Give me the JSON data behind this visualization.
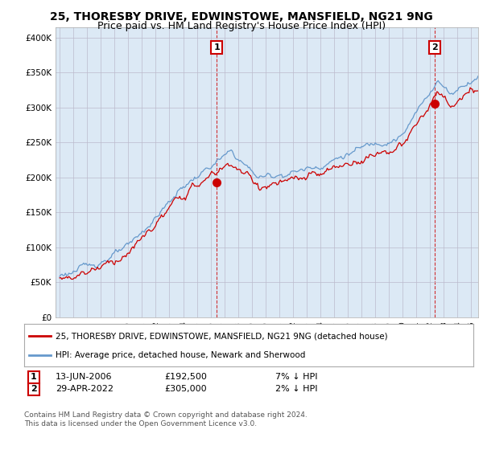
{
  "title": "25, THORESBY DRIVE, EDWINSTOWE, MANSFIELD, NG21 9NG",
  "subtitle": "Price paid vs. HM Land Registry's House Price Index (HPI)",
  "ylabel_ticks": [
    "£0",
    "£50K",
    "£100K",
    "£150K",
    "£200K",
    "£250K",
    "£300K",
    "£350K",
    "£400K"
  ],
  "ytick_values": [
    0,
    50000,
    100000,
    150000,
    200000,
    250000,
    300000,
    350000,
    400000
  ],
  "ylim": [
    0,
    415000
  ],
  "xlim_start": 1994.7,
  "xlim_end": 2025.5,
  "sale1": {
    "date_x": 2006.45,
    "price": 192500,
    "label": "1",
    "date_str": "13-JUN-2006",
    "price_str": "£192,500",
    "hpi_str": "7% ↓ HPI"
  },
  "sale2": {
    "date_x": 2022.33,
    "price": 305000,
    "label": "2",
    "date_str": "29-APR-2022",
    "price_str": "£305,000",
    "hpi_str": "2% ↓ HPI"
  },
  "legend_property": "25, THORESBY DRIVE, EDWINSTOWE, MANSFIELD, NG21 9NG (detached house)",
  "legend_hpi": "HPI: Average price, detached house, Newark and Sherwood",
  "footnote": "Contains HM Land Registry data © Crown copyright and database right 2024.\nThis data is licensed under the Open Government Licence v3.0.",
  "property_color": "#cc0000",
  "hpi_color": "#6699cc",
  "plot_bg_color": "#dce9f5",
  "background_color": "#ffffff",
  "grid_color": "#bbbbcc",
  "title_fontsize": 10,
  "subtitle_fontsize": 9,
  "tick_fontsize": 7.5
}
